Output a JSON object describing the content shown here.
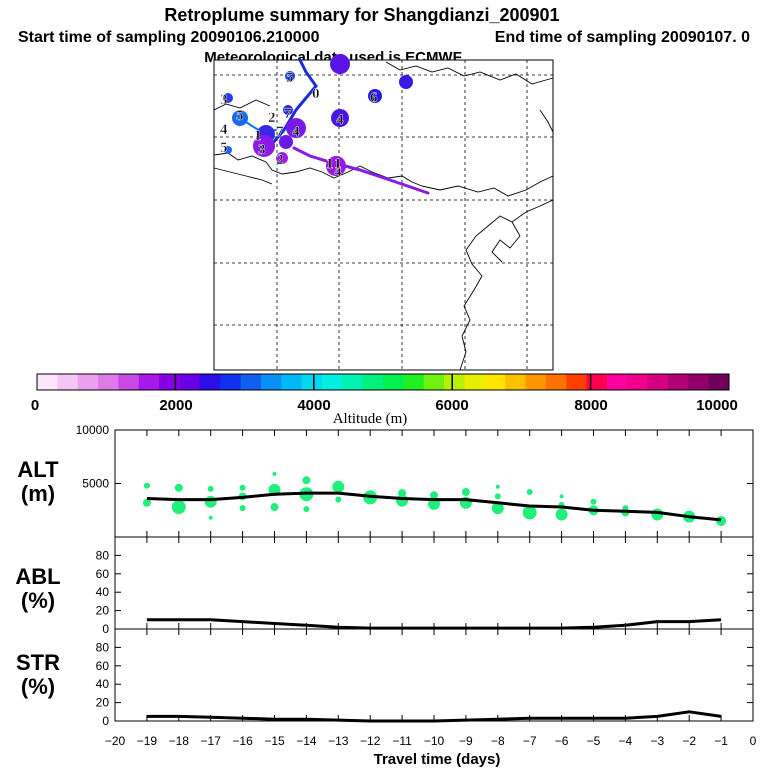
{
  "header": {
    "title": "Retroplume summary for Shangdianzi_200901",
    "start_label": "Start time of sampling 20090106.210000",
    "end_label": "End time of sampling 20090107.     0",
    "met_label": "Meteorological data used is ECMWF"
  },
  "colorbar": {
    "label": "Altitude (m)",
    "ticks": [
      "0",
      "2000",
      "4000",
      "6000",
      "8000",
      "10000"
    ],
    "min": 0,
    "max": 10000,
    "colors": [
      "#fbe6fb",
      "#f4c6f4",
      "#eba0f0",
      "#df7be8",
      "#c84ae4",
      "#a818e6",
      "#8a00e6",
      "#6a00e6",
      "#2a10e6",
      "#1030f0",
      "#1060f0",
      "#0a90f5",
      "#00b8f5",
      "#00d8f0",
      "#00f0e0",
      "#00f0b0",
      "#00f080",
      "#00f050",
      "#20f020",
      "#70f010",
      "#b8f000",
      "#e8f000",
      "#ffe600",
      "#ffc000",
      "#ff9800",
      "#ff7000",
      "#ff4000",
      "#ff0050",
      "#ff00a0",
      "#f0008c",
      "#d40080",
      "#b00074",
      "#900068",
      "#70005c"
    ]
  },
  "map": {
    "cluster_labels": [
      "5",
      "0",
      "3",
      "4",
      "5",
      "2",
      "7",
      "5",
      "4",
      "1",
      "3",
      "7",
      "4",
      "2",
      "1",
      "1",
      "6",
      "4"
    ]
  },
  "chart_data": [
    {
      "type": "scatter",
      "name": "ALT",
      "ylabel_line1": "ALT",
      "ylabel_line2": "(m)",
      "ylim": [
        0,
        10000
      ],
      "yticks": [
        5000,
        10000
      ],
      "line": {
        "x": [
          -19,
          -18,
          -17,
          -16,
          -15,
          -14,
          -13,
          -12,
          -11,
          -10,
          -9,
          -8,
          -7,
          -6,
          -5,
          -4,
          -3,
          -2,
          -1
        ],
        "y": [
          3600,
          3500,
          3500,
          3700,
          4000,
          4100,
          4100,
          3800,
          3600,
          3500,
          3500,
          3200,
          2900,
          2800,
          2500,
          2400,
          2300,
          1900,
          1600
        ]
      },
      "points": [
        [
          -19,
          4800,
          3
        ],
        [
          -19,
          3200,
          4
        ],
        [
          -18,
          4600,
          4
        ],
        [
          -18,
          2800,
          7
        ],
        [
          -17,
          4500,
          3
        ],
        [
          -17,
          3300,
          6
        ],
        [
          -17,
          1800,
          2
        ],
        [
          -16,
          4600,
          3
        ],
        [
          -16,
          3800,
          4
        ],
        [
          -16,
          2700,
          3
        ],
        [
          -15,
          5900,
          2
        ],
        [
          -15,
          4400,
          6
        ],
        [
          -15,
          2800,
          4
        ],
        [
          -14,
          5300,
          4
        ],
        [
          -14,
          4000,
          7
        ],
        [
          -14,
          2600,
          3
        ],
        [
          -13,
          4700,
          6
        ],
        [
          -13,
          3500,
          3
        ],
        [
          -12,
          3700,
          7
        ],
        [
          -11,
          4100,
          4
        ],
        [
          -11,
          3400,
          6
        ],
        [
          -10,
          3900,
          4
        ],
        [
          -10,
          3100,
          6
        ],
        [
          -9,
          4200,
          4
        ],
        [
          -9,
          3200,
          6
        ],
        [
          -8,
          4700,
          2
        ],
        [
          -8,
          3800,
          3
        ],
        [
          -8,
          2700,
          6
        ],
        [
          -7,
          4200,
          3
        ],
        [
          -7,
          2300,
          7
        ],
        [
          -6,
          3800,
          2
        ],
        [
          -6,
          3000,
          3
        ],
        [
          -6,
          2100,
          6
        ],
        [
          -5,
          3300,
          3
        ],
        [
          -5,
          2500,
          5
        ],
        [
          -4,
          2700,
          3
        ],
        [
          -4,
          2300,
          4
        ],
        [
          -3,
          2100,
          6
        ],
        [
          -2,
          1900,
          6
        ],
        [
          -1,
          1500,
          5
        ]
      ]
    },
    {
      "type": "line",
      "name": "ABL",
      "ylabel_line1": "ABL",
      "ylabel_line2": "(%)",
      "ylim": [
        0,
        100
      ],
      "yticks": [
        0,
        20,
        40,
        60,
        80
      ],
      "x": [
        -19,
        -18,
        -17,
        -16,
        -15,
        -14,
        -13,
        -12,
        -11,
        -10,
        -9,
        -8,
        -7,
        -6,
        -5,
        -4,
        -3,
        -2,
        -1
      ],
      "y": [
        10,
        10,
        10,
        8,
        6,
        4,
        2,
        1,
        1,
        1,
        1,
        1,
        1,
        1,
        2,
        4,
        8,
        8,
        10
      ]
    },
    {
      "type": "line",
      "name": "STR",
      "ylabel_line1": "STR",
      "ylabel_line2": "(%)",
      "ylim": [
        0,
        100
      ],
      "yticks": [
        0,
        20,
        40,
        60,
        80
      ],
      "x": [
        -19,
        -18,
        -17,
        -16,
        -15,
        -14,
        -13,
        -12,
        -11,
        -10,
        -9,
        -8,
        -7,
        -6,
        -5,
        -4,
        -3,
        -2,
        -1
      ],
      "y": [
        5,
        5,
        4,
        3,
        2,
        2,
        1,
        0,
        0,
        0,
        1,
        2,
        3,
        3,
        3,
        3,
        5,
        10,
        5
      ]
    }
  ],
  "xaxis": {
    "label": "Travel time (days)",
    "ticks": [
      "−20",
      "−19",
      "−18",
      "−17",
      "−16",
      "−15",
      "−14",
      "−13",
      "−12",
      "−11",
      "−10",
      "−9",
      "−8",
      "−7",
      "−6",
      "−5",
      "−4",
      "−3",
      "−2",
      "−1",
      "0"
    ],
    "min": -20,
    "max": 0
  }
}
